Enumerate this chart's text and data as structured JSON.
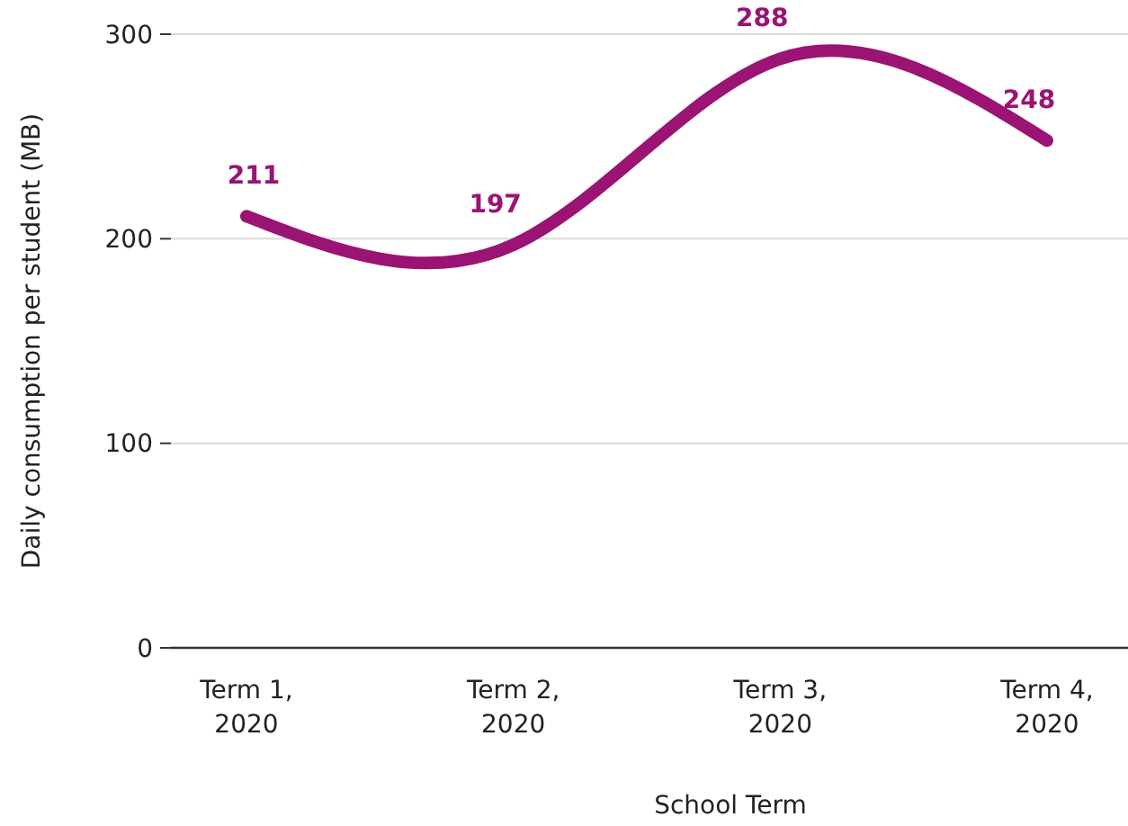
{
  "chart_data": {
    "type": "line",
    "xlabel": "School Term",
    "ylabel": "Daily consumption per student (MB)",
    "categories": [
      "Term 1, 2020",
      "Term 2, 2020",
      "Term 3, 2020",
      "Term 4, 2020"
    ],
    "series": [
      {
        "color": "#9b1373",
        "values": [
          211,
          197,
          288,
          248
        ]
      }
    ],
    "ylim": [
      0,
      300
    ],
    "yticks": [
      0,
      100,
      200,
      300
    ],
    "grid": "y",
    "data_labels": true,
    "marker": "none",
    "line_style": "solid"
  }
}
